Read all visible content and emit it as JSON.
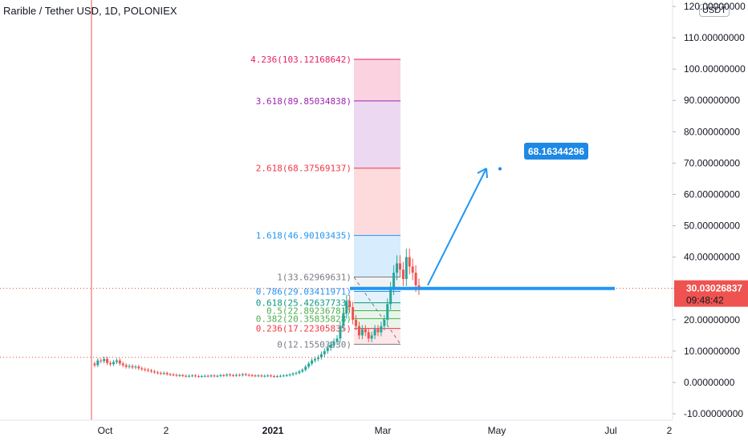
{
  "header": {
    "title": "Rarible / Tether USD, 1D, POLONIEX",
    "currency": "USDT"
  },
  "colors": {
    "up": "#26a69a",
    "down": "#ef5350",
    "accent": "#2196f3",
    "price_tag": "#ef5350",
    "annotation": "#1e88e5"
  },
  "chart_data": {
    "type": "candlestick",
    "ylim": [
      -10,
      120
    ],
    "y_ticks": [
      {
        "value": 120,
        "label": "120.00000000"
      },
      {
        "value": 110,
        "label": "110.00000000"
      },
      {
        "value": 100,
        "label": "100.00000000"
      },
      {
        "value": 90,
        "label": "90.00000000"
      },
      {
        "value": 80,
        "label": "80.00000000"
      },
      {
        "value": 70,
        "label": "70.00000000"
      },
      {
        "value": 60,
        "label": "60.00000000"
      },
      {
        "value": 50,
        "label": "50.00000000"
      },
      {
        "value": 40,
        "label": "40.00000000"
      },
      {
        "value": 30,
        "label": "30.00000000"
      },
      {
        "value": 20,
        "label": "20.00000000"
      },
      {
        "value": 10,
        "label": "10.00000000"
      },
      {
        "value": 0,
        "label": "0.00000000"
      },
      {
        "value": -10,
        "label": "-10.00000000"
      }
    ],
    "x_ticks": [
      {
        "label": "Oct",
        "bold": false
      },
      {
        "label": "2",
        "bold": false
      },
      {
        "label": "2021",
        "bold": true
      },
      {
        "label": "Mar",
        "bold": false
      },
      {
        "label": "May",
        "bold": false
      },
      {
        "label": "Jul",
        "bold": false
      },
      {
        "label": "2",
        "bold": false
      }
    ],
    "fib_levels": [
      {
        "ratio": 0,
        "price": 12.1550393,
        "label": "0(12.15503930)",
        "color": "#787b86"
      },
      {
        "ratio": 0.236,
        "price": 17.22305835,
        "label": "0.236(17.22305835)",
        "color": "#f23645"
      },
      {
        "ratio": 0.382,
        "price": 20.35835828,
        "label": "0.382(20.35835828)",
        "color": "#4caf50"
      },
      {
        "ratio": 0.5,
        "price": 22.89236781,
        "label": "0.5(22.89236781)",
        "color": "#4caf50"
      },
      {
        "ratio": 0.618,
        "price": 25.42637733,
        "label": "0.618(25.42637733)",
        "color": "#089981"
      },
      {
        "ratio": 0.786,
        "price": 29.03411971,
        "label": "0.786(29.03411971)",
        "color": "#2196f3"
      },
      {
        "ratio": 1,
        "price": 33.62969631,
        "label": "1(33.62969631)",
        "color": "#787b86"
      },
      {
        "ratio": 1.618,
        "price": 46.90103435,
        "label": "1.618(46.90103435)",
        "color": "#2196f3"
      },
      {
        "ratio": 2.618,
        "price": 68.37569137,
        "label": "2.618(68.37569137)",
        "color": "#f23645"
      },
      {
        "ratio": 3.618,
        "price": 89.85034838,
        "label": "3.618(89.85034838)",
        "color": "#9c27b0"
      },
      {
        "ratio": 4.236,
        "price": 103.12168642,
        "label": "4.236(103.12168642)",
        "color": "#e91e63"
      }
    ],
    "current_price": {
      "value": 30.03026837,
      "label": "30.03026837",
      "countdown": "09:48:42"
    },
    "target_annotation": {
      "value": 68.16344296,
      "label": "68.16344296"
    },
    "support_line": 30.0,
    "dotted_level": 8.0,
    "series": [
      {
        "name": "",
        "values": [
          6,
          5.5,
          7,
          6.8,
          7.5,
          6.2,
          5.8,
          6.5,
          7,
          6,
          5.5,
          5,
          5.2,
          4.8,
          5,
          4.5,
          4.2,
          4,
          3.8,
          3.5,
          3.2,
          3,
          2.8,
          3,
          2.6,
          2.5,
          2.4,
          2.2,
          2.3,
          2.1,
          2,
          2.1,
          2.2,
          2,
          1.9,
          2,
          2.1,
          2,
          2.2,
          2,
          2.1,
          2.3,
          2.2,
          2.5,
          2.3,
          2.2,
          2.4,
          2.3,
          2.6,
          2.4,
          2.3,
          2.2,
          2.1,
          2.2,
          2,
          2.1,
          2.2,
          2,
          1.9,
          2,
          2.1,
          2.2,
          2.3,
          2.5,
          2.8,
          3,
          3.5,
          4,
          5,
          6,
          7,
          7.5,
          8,
          9,
          10,
          11,
          12,
          13,
          14,
          18,
          22,
          26,
          24,
          20,
          18,
          15,
          17,
          16,
          14,
          15,
          17,
          16,
          18,
          20,
          25,
          30,
          35,
          38,
          36,
          33,
          40,
          37,
          35,
          31,
          30
        ]
      }
    ]
  }
}
